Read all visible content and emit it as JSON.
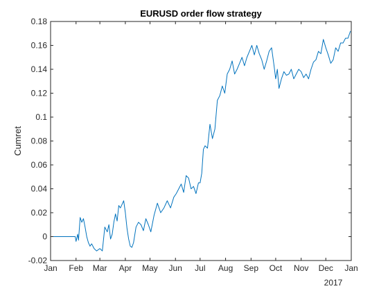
{
  "chart_data": {
    "type": "line",
    "title": "EURUSD order flow strategy",
    "xlabel": "",
    "ylabel": "Cumret",
    "x_tick_labels": [
      "Jan",
      "Feb",
      "Mar",
      "Apr",
      "May",
      "Jun",
      "Jul",
      "Aug",
      "Sep",
      "Oct",
      "Nov",
      "Dec",
      "Jan"
    ],
    "x_secondary_label": "2017",
    "xlim": [
      "2016-01-01",
      "2017-01-01"
    ],
    "y_ticks": [
      -0.02,
      0,
      0.02,
      0.04,
      0.06,
      0.08,
      0.1,
      0.12,
      0.14,
      0.16,
      0.18
    ],
    "y_tick_labels": [
      "-0.02",
      "0",
      "0.02",
      "0.04",
      "0.06",
      "0.08",
      "0.1",
      "0.12",
      "0.14",
      "0.16",
      "0.18"
    ],
    "ylim": [
      -0.02,
      0.18
    ],
    "grid": false,
    "line_color": "#0072BD",
    "series": [
      {
        "x": [
          "2016-01-01",
          "2016-01-28",
          "2016-01-31",
          "2016-02-01",
          "2016-02-03",
          "2016-02-04",
          "2016-02-06",
          "2016-02-08",
          "2016-02-10",
          "2016-02-12",
          "2016-02-14",
          "2016-02-16",
          "2016-02-18",
          "2016-02-20",
          "2016-02-23",
          "2016-02-26",
          "2016-03-01",
          "2016-03-04",
          "2016-03-07",
          "2016-03-10",
          "2016-03-12",
          "2016-03-14",
          "2016-03-16",
          "2016-03-18",
          "2016-03-20",
          "2016-03-22",
          "2016-03-24",
          "2016-03-26",
          "2016-03-28",
          "2016-03-30",
          "2016-04-01",
          "2016-04-03",
          "2016-04-05",
          "2016-04-07",
          "2016-04-09",
          "2016-04-11",
          "2016-04-14",
          "2016-04-17",
          "2016-04-20",
          "2016-04-23",
          "2016-04-26",
          "2016-04-29",
          "2016-05-02",
          "2016-05-06",
          "2016-05-10",
          "2016-05-14",
          "2016-05-18",
          "2016-05-22",
          "2016-05-26",
          "2016-05-30",
          "2016-06-02",
          "2016-06-05",
          "2016-06-08",
          "2016-06-11",
          "2016-06-14",
          "2016-06-17",
          "2016-06-20",
          "2016-06-23",
          "2016-06-26",
          "2016-06-29",
          "2016-07-01",
          "2016-07-03",
          "2016-07-05",
          "2016-07-07",
          "2016-07-10",
          "2016-07-13",
          "2016-07-16",
          "2016-07-19",
          "2016-07-22",
          "2016-07-25",
          "2016-07-28",
          "2016-07-31",
          "2016-08-03",
          "2016-08-06",
          "2016-08-09",
          "2016-08-12",
          "2016-08-15",
          "2016-08-18",
          "2016-08-21",
          "2016-08-24",
          "2016-08-27",
          "2016-08-30",
          "2016-09-02",
          "2016-09-05",
          "2016-09-08",
          "2016-09-11",
          "2016-09-14",
          "2016-09-17",
          "2016-09-20",
          "2016-09-23",
          "2016-09-26",
          "2016-09-29",
          "2016-10-01",
          "2016-10-03",
          "2016-10-05",
          "2016-10-08",
          "2016-10-11",
          "2016-10-14",
          "2016-10-17",
          "2016-10-20",
          "2016-10-23",
          "2016-10-26",
          "2016-10-29",
          "2016-11-01",
          "2016-11-04",
          "2016-11-07",
          "2016-11-10",
          "2016-11-13",
          "2016-11-16",
          "2016-11-19",
          "2016-11-22",
          "2016-11-25",
          "2016-11-28",
          "2016-12-01",
          "2016-12-04",
          "2016-12-07",
          "2016-12-10",
          "2016-12-13",
          "2016-12-16",
          "2016-12-19",
          "2016-12-22",
          "2016-12-25",
          "2016-12-28",
          "2016-12-31"
        ],
        "y": [
          0,
          0,
          0,
          -0.004,
          0.002,
          -0.003,
          0.016,
          0.012,
          0.015,
          0.008,
          0,
          -0.005,
          -0.008,
          -0.006,
          -0.01,
          -0.012,
          -0.01,
          -0.012,
          0.008,
          0.004,
          0.01,
          -0.002,
          0.002,
          0.012,
          0.019,
          0.013,
          0.026,
          0.024,
          0.027,
          0.03,
          0.02,
          0.007,
          -0.002,
          -0.008,
          -0.009,
          -0.005,
          0.008,
          0.012,
          0.01,
          0.005,
          0.015,
          0.01,
          0.004,
          0.018,
          0.028,
          0.02,
          0.024,
          0.03,
          0.024,
          0.033,
          0.036,
          0.04,
          0.044,
          0.037,
          0.051,
          0.049,
          0.04,
          0.042,
          0.036,
          0.045,
          0.045,
          0.053,
          0.073,
          0.076,
          0.074,
          0.094,
          0.082,
          0.09,
          0.114,
          0.118,
          0.126,
          0.12,
          0.136,
          0.14,
          0.147,
          0.136,
          0.14,
          0.145,
          0.15,
          0.143,
          0.15,
          0.155,
          0.16,
          0.152,
          0.16,
          0.153,
          0.148,
          0.14,
          0.147,
          0.155,
          0.158,
          0.143,
          0.132,
          0.14,
          0.124,
          0.132,
          0.138,
          0.135,
          0.136,
          0.14,
          0.132,
          0.136,
          0.14,
          0.138,
          0.133,
          0.136,
          0.132,
          0.14,
          0.146,
          0.148,
          0.155,
          0.153,
          0.165,
          0.158,
          0.152,
          0.145,
          0.148,
          0.158,
          0.155,
          0.162,
          0.162,
          0.166,
          0.166,
          0.172
        ]
      }
    ]
  }
}
